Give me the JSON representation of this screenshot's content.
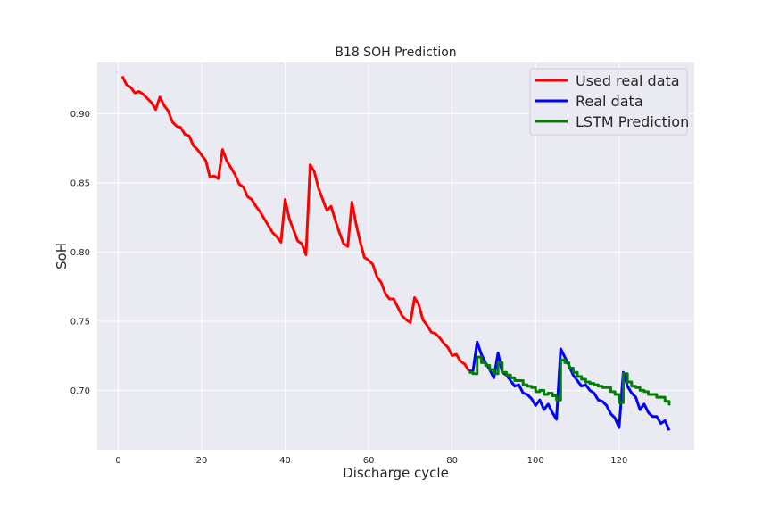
{
  "chart_data": {
    "type": "line",
    "title": "B18 SOH Prediction",
    "xlabel": "Discharge cycle",
    "ylabel": "SoH",
    "xlim": [
      -5,
      138
    ],
    "ylim": [
      0.657,
      0.937
    ],
    "xticks": [
      0,
      20,
      40,
      60,
      80,
      100,
      120
    ],
    "yticks": [
      0.7,
      0.75,
      0.8,
      0.85,
      0.9
    ],
    "ytick_labels": [
      "0.70",
      "0.75",
      "0.80",
      "0.85",
      "0.90"
    ],
    "grid": true,
    "legend_position": "top-right",
    "series": [
      {
        "name": "Used real data",
        "color": "#ff0000",
        "points": [
          [
            1,
            0.927
          ],
          [
            2,
            0.921
          ],
          [
            3,
            0.919
          ],
          [
            4,
            0.915
          ],
          [
            5,
            0.916
          ],
          [
            6,
            0.914
          ],
          [
            7,
            0.911
          ],
          [
            8,
            0.908
          ],
          [
            9,
            0.903
          ],
          [
            10,
            0.912
          ],
          [
            11,
            0.906
          ],
          [
            12,
            0.902
          ],
          [
            13,
            0.894
          ],
          [
            14,
            0.891
          ],
          [
            15,
            0.89
          ],
          [
            16,
            0.885
          ],
          [
            17,
            0.884
          ],
          [
            18,
            0.877
          ],
          [
            19,
            0.874
          ],
          [
            20,
            0.87
          ],
          [
            21,
            0.866
          ],
          [
            22,
            0.854
          ],
          [
            23,
            0.855
          ],
          [
            24,
            0.853
          ],
          [
            25,
            0.874
          ],
          [
            26,
            0.866
          ],
          [
            27,
            0.861
          ],
          [
            28,
            0.856
          ],
          [
            29,
            0.849
          ],
          [
            30,
            0.847
          ],
          [
            31,
            0.84
          ],
          [
            32,
            0.838
          ],
          [
            33,
            0.833
          ],
          [
            34,
            0.829
          ],
          [
            35,
            0.824
          ],
          [
            36,
            0.819
          ],
          [
            37,
            0.814
          ],
          [
            38,
            0.811
          ],
          [
            39,
            0.807
          ],
          [
            40,
            0.838
          ],
          [
            41,
            0.824
          ],
          [
            42,
            0.816
          ],
          [
            43,
            0.808
          ],
          [
            44,
            0.806
          ],
          [
            45,
            0.798
          ],
          [
            46,
            0.863
          ],
          [
            47,
            0.858
          ],
          [
            48,
            0.846
          ],
          [
            49,
            0.838
          ],
          [
            50,
            0.83
          ],
          [
            51,
            0.833
          ],
          [
            52,
            0.823
          ],
          [
            53,
            0.814
          ],
          [
            54,
            0.806
          ],
          [
            55,
            0.804
          ],
          [
            56,
            0.836
          ],
          [
            57,
            0.82
          ],
          [
            58,
            0.807
          ],
          [
            59,
            0.796
          ],
          [
            60,
            0.794
          ],
          [
            61,
            0.791
          ],
          [
            62,
            0.782
          ],
          [
            63,
            0.778
          ],
          [
            64,
            0.77
          ],
          [
            65,
            0.766
          ],
          [
            66,
            0.766
          ],
          [
            67,
            0.76
          ],
          [
            68,
            0.754
          ],
          [
            69,
            0.751
          ],
          [
            70,
            0.749
          ],
          [
            71,
            0.767
          ],
          [
            72,
            0.762
          ],
          [
            73,
            0.751
          ],
          [
            74,
            0.747
          ],
          [
            75,
            0.742
          ],
          [
            76,
            0.741
          ],
          [
            77,
            0.738
          ],
          [
            78,
            0.734
          ],
          [
            79,
            0.731
          ],
          [
            80,
            0.725
          ],
          [
            81,
            0.726
          ],
          [
            82,
            0.721
          ],
          [
            83,
            0.719
          ],
          [
            84,
            0.714
          ]
        ]
      },
      {
        "name": "Real data",
        "color": "#0000ff",
        "points": [
          [
            84,
            0.714
          ],
          [
            85,
            0.714
          ],
          [
            86,
            0.735
          ],
          [
            87,
            0.726
          ],
          [
            88,
            0.72
          ],
          [
            89,
            0.715
          ],
          [
            90,
            0.709
          ],
          [
            91,
            0.727
          ],
          [
            92,
            0.713
          ],
          [
            93,
            0.711
          ],
          [
            94,
            0.707
          ],
          [
            95,
            0.703
          ],
          [
            96,
            0.704
          ],
          [
            97,
            0.698
          ],
          [
            98,
            0.697
          ],
          [
            99,
            0.694
          ],
          [
            100,
            0.689
          ],
          [
            101,
            0.693
          ],
          [
            102,
            0.686
          ],
          [
            103,
            0.69
          ],
          [
            104,
            0.684
          ],
          [
            105,
            0.679
          ],
          [
            106,
            0.73
          ],
          [
            107,
            0.724
          ],
          [
            108,
            0.718
          ],
          [
            109,
            0.711
          ],
          [
            110,
            0.707
          ],
          [
            111,
            0.703
          ],
          [
            112,
            0.704
          ],
          [
            113,
            0.7
          ],
          [
            114,
            0.698
          ],
          [
            115,
            0.693
          ],
          [
            116,
            0.692
          ],
          [
            117,
            0.689
          ],
          [
            118,
            0.683
          ],
          [
            119,
            0.68
          ],
          [
            120,
            0.673
          ],
          [
            121,
            0.713
          ],
          [
            122,
            0.703
          ],
          [
            123,
            0.698
          ],
          [
            124,
            0.695
          ],
          [
            125,
            0.686
          ],
          [
            126,
            0.69
          ],
          [
            127,
            0.684
          ],
          [
            128,
            0.681
          ],
          [
            129,
            0.681
          ],
          [
            130,
            0.676
          ],
          [
            131,
            0.678
          ],
          [
            132,
            0.671
          ]
        ]
      },
      {
        "name": "LSTM Prediction",
        "color": "#008000",
        "step": true,
        "points": [
          [
            84,
            0.713
          ],
          [
            85,
            0.712
          ],
          [
            86,
            0.724
          ],
          [
            87,
            0.72
          ],
          [
            88,
            0.718
          ],
          [
            89,
            0.715
          ],
          [
            90,
            0.712
          ],
          [
            91,
            0.72
          ],
          [
            92,
            0.713
          ],
          [
            93,
            0.711
          ],
          [
            94,
            0.709
          ],
          [
            95,
            0.707
          ],
          [
            96,
            0.707
          ],
          [
            97,
            0.704
          ],
          [
            98,
            0.703
          ],
          [
            99,
            0.702
          ],
          [
            100,
            0.699
          ],
          [
            101,
            0.7
          ],
          [
            102,
            0.697
          ],
          [
            103,
            0.698
          ],
          [
            104,
            0.696
          ],
          [
            105,
            0.693
          ],
          [
            106,
            0.722
          ],
          [
            107,
            0.72
          ],
          [
            108,
            0.716
          ],
          [
            109,
            0.713
          ],
          [
            110,
            0.71
          ],
          [
            111,
            0.708
          ],
          [
            112,
            0.706
          ],
          [
            113,
            0.705
          ],
          [
            114,
            0.704
          ],
          [
            115,
            0.703
          ],
          [
            116,
            0.702
          ],
          [
            117,
            0.702
          ],
          [
            118,
            0.699
          ],
          [
            119,
            0.697
          ],
          [
            120,
            0.691
          ],
          [
            121,
            0.712
          ],
          [
            122,
            0.706
          ],
          [
            123,
            0.703
          ],
          [
            124,
            0.702
          ],
          [
            125,
            0.7
          ],
          [
            126,
            0.699
          ],
          [
            127,
            0.697
          ],
          [
            128,
            0.697
          ],
          [
            129,
            0.695
          ],
          [
            130,
            0.695
          ],
          [
            131,
            0.692
          ],
          [
            132,
            0.689
          ]
        ]
      }
    ]
  }
}
